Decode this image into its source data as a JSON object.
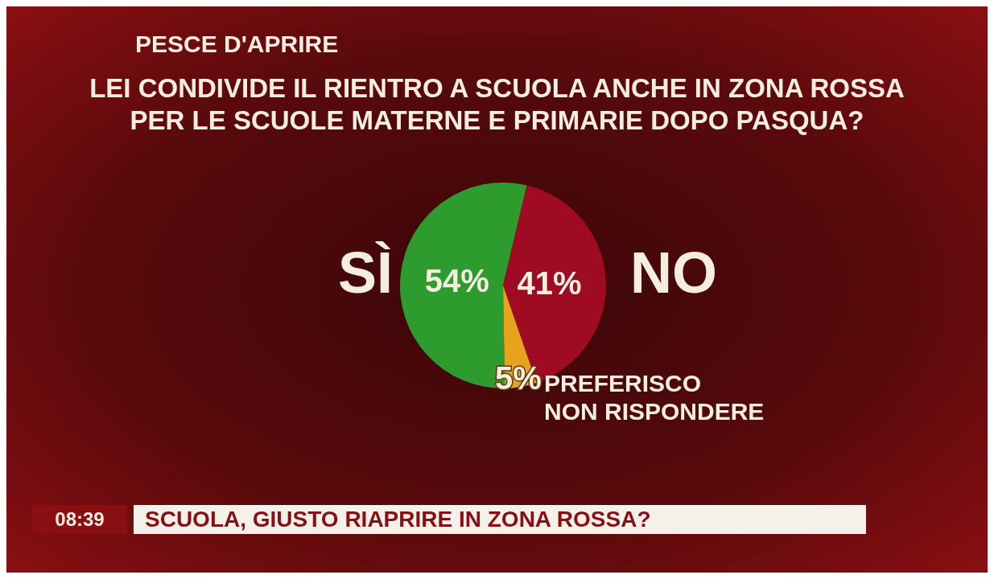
{
  "chart_data": {
    "type": "pie",
    "title": "LEI CONDIVIDE IL RIENTRO A SCUOLA ANCHE IN ZONA ROSSA\nPER LE SCUOLE MATERNE E PRIMARIE DOPO PASQUA?",
    "subtitle": "PESCE D'APRIRE",
    "categories": [
      "SÌ",
      "NO",
      "PREFERISCO\nNON RISPONDERE"
    ],
    "values": [
      54,
      41,
      5
    ],
    "value_labels": [
      "54%",
      "41%",
      "5%"
    ],
    "colors": [
      "#2e9b2e",
      "#9e0b22",
      "#e8a31c"
    ],
    "annotations": [
      "SCUOLA, GIUSTO RIAPRIRE IN ZONA ROSSA?",
      "08:39"
    ]
  }
}
